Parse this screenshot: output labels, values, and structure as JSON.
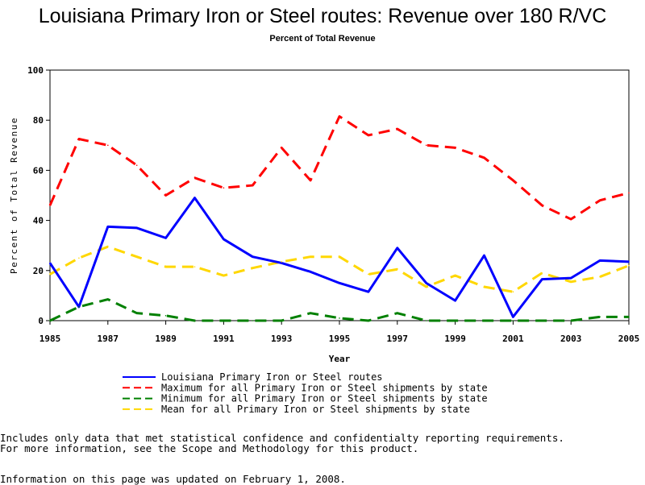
{
  "chart_data": {
    "type": "line",
    "title": "Louisiana Primary Iron or Steel routes: Revenue over 180 R/VC",
    "subtitle": "Percent of Total Revenue",
    "xlabel": "Year",
    "ylabel": "Percent of Total Revenue",
    "xlim": [
      1985,
      2005
    ],
    "ylim": [
      0,
      100
    ],
    "x": [
      1985,
      1986,
      1987,
      1988,
      1989,
      1990,
      1991,
      1992,
      1993,
      1994,
      1995,
      1996,
      1997,
      1998,
      1999,
      2000,
      2001,
      2002,
      2003,
      2004,
      2005
    ],
    "x_ticks": [
      "1985",
      "1987",
      "1989",
      "1991",
      "1993",
      "1995",
      "1997",
      "1999",
      "2001",
      "2003",
      "2005"
    ],
    "y_ticks": [
      "0",
      "20",
      "40",
      "60",
      "80",
      "100"
    ],
    "series": [
      {
        "name": "Louisiana Primary Iron or Steel routes",
        "color": "#0000ff",
        "style": "solid",
        "values": [
          23,
          5.5,
          37.5,
          37,
          33,
          49,
          32.5,
          25.5,
          23,
          19.5,
          15,
          11.5,
          29,
          15,
          8,
          26,
          1.5,
          16.5,
          17,
          24,
          23.5
        ]
      },
      {
        "name": "Maximum for all Primary Iron or Steel shipments by state",
        "color": "#ff0000",
        "style": "dashed",
        "values": [
          46,
          72.5,
          70,
          62,
          50,
          57,
          53,
          54,
          69,
          56,
          81.5,
          74,
          76.5,
          70,
          69,
          65,
          56,
          46,
          40.5,
          48,
          51
        ]
      },
      {
        "name": "Minimum for all Primary Iron or Steel shipments by state",
        "color": "#008000",
        "style": "dashed",
        "values": [
          0,
          5.5,
          8.5,
          3,
          2,
          0,
          0,
          0,
          0,
          3,
          1,
          0,
          3,
          0,
          0,
          0,
          0,
          0,
          0,
          1.5,
          1.5
        ]
      },
      {
        "name": "Mean for all Primary Iron or Steel shipments by state",
        "color": "#ffd700",
        "style": "dashed",
        "values": [
          18.5,
          25,
          29.5,
          25.5,
          21.5,
          21.5,
          18,
          21,
          23.5,
          25.5,
          25.5,
          18.5,
          20.5,
          13.5,
          18,
          13.5,
          11.5,
          19,
          15.5,
          17.5,
          22
        ]
      }
    ],
    "legend_position": "bottom"
  },
  "notes": {
    "line1": "Includes only data that met statistical confidence and confidentialty reporting requirements.",
    "line2": "For more information, see the Scope and Methodology for this product.",
    "updated": "Information on this page was updated on February 1, 2008."
  }
}
